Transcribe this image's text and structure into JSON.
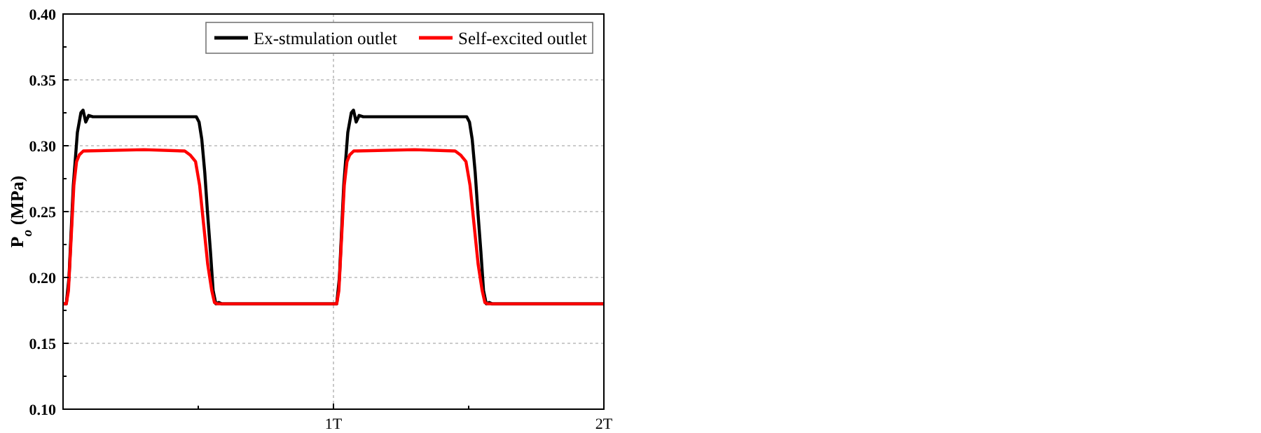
{
  "chart_data": {
    "type": "line",
    "ylabel": "P$_{o}$ (MPa)",
    "xlim": [
      0,
      2
    ],
    "xticks": [
      {
        "value": 0.5,
        "label": null
      },
      {
        "value": 1,
        "label": "1T"
      },
      {
        "value": 1.5,
        "label": null
      },
      {
        "value": 2,
        "label": "2T"
      }
    ],
    "ylim": [
      0.1,
      0.4
    ],
    "yticks": [
      {
        "value": 0.1,
        "label": "0.10"
      },
      {
        "value": 0.125,
        "label": null
      },
      0.15,
      {
        "value": 0.175,
        "label": null
      },
      {
        "value": 0.2,
        "label": "0.20"
      },
      {
        "value": 0.225,
        "label": null
      },
      0.25,
      {
        "value": 0.275,
        "label": null
      },
      {
        "value": 0.3,
        "label": "0.30"
      },
      {
        "value": 0.325,
        "label": null
      },
      0.35,
      {
        "value": 0.375,
        "label": null
      },
      {
        "value": 0.4,
        "label": "0.40"
      }
    ],
    "grid": true,
    "legend": "top right",
    "marker": "none",
    "line_style": "solid",
    "series": [
      {
        "name": "Ex-stmulation outlet",
        "color": "#000000",
        "x": [
          0,
          0.012,
          0.022,
          0.038,
          0.053,
          0.066,
          0.074,
          0.084,
          0.095,
          0.11,
          0.493,
          0.503,
          0.513,
          0.524,
          0.534,
          0.545,
          0.555,
          0.565,
          0.576,
          0.586,
          1.0,
          1.012,
          1.022,
          1.038,
          1.053,
          1.066,
          1.074,
          1.084,
          1.095,
          1.11,
          1.493,
          1.503,
          1.513,
          1.524,
          1.534,
          1.545,
          1.555,
          1.565,
          1.576,
          1.586,
          2.0
        ],
        "values": [
          0.18,
          0.18,
          0.2,
          0.27,
          0.31,
          0.325,
          0.327,
          0.318,
          0.323,
          0.322,
          0.322,
          0.318,
          0.305,
          0.28,
          0.25,
          0.22,
          0.19,
          0.18,
          0.181,
          0.18,
          0.18,
          0.18,
          0.2,
          0.27,
          0.31,
          0.325,
          0.327,
          0.318,
          0.323,
          0.322,
          0.322,
          0.318,
          0.305,
          0.28,
          0.25,
          0.22,
          0.19,
          0.18,
          0.181,
          0.18,
          0.18
        ]
      },
      {
        "name": "Self-excited outlet",
        "color": "#ff0000",
        "x": [
          0,
          0.012,
          0.02,
          0.03,
          0.04,
          0.05,
          0.06,
          0.075,
          0.3,
          0.45,
          0.47,
          0.49,
          0.505,
          0.52,
          0.535,
          0.55,
          0.56,
          0.57,
          1.0,
          1.012,
          1.02,
          1.03,
          1.04,
          1.05,
          1.06,
          1.075,
          1.3,
          1.45,
          1.47,
          1.49,
          1.505,
          1.52,
          1.535,
          1.55,
          1.56,
          1.57,
          2.0
        ],
        "values": [
          0.18,
          0.18,
          0.19,
          0.23,
          0.27,
          0.288,
          0.293,
          0.296,
          0.297,
          0.296,
          0.293,
          0.288,
          0.27,
          0.24,
          0.21,
          0.19,
          0.181,
          0.18,
          0.18,
          0.18,
          0.19,
          0.23,
          0.27,
          0.288,
          0.293,
          0.296,
          0.297,
          0.296,
          0.293,
          0.288,
          0.27,
          0.24,
          0.21,
          0.19,
          0.181,
          0.18,
          0.18
        ]
      }
    ]
  }
}
